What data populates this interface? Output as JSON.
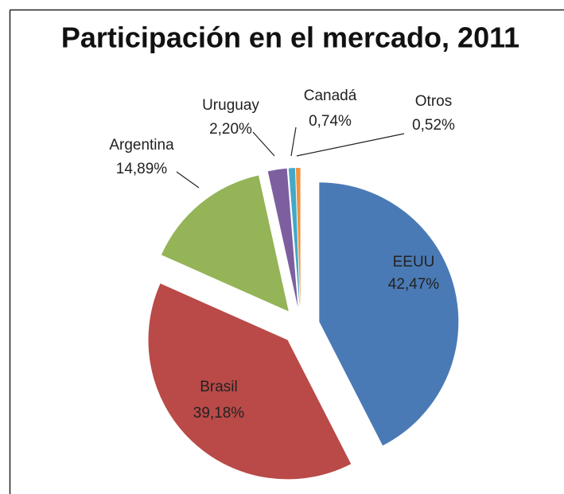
{
  "chart_data": {
    "type": "pie",
    "title": "Participación en el mercado, 2011",
    "categories": [
      "EEUU",
      "Brasil",
      "Argentina",
      "Uruguay",
      "Canadá",
      "Otros"
    ],
    "values": [
      42.47,
      39.18,
      14.89,
      2.2,
      0.74,
      0.52
    ],
    "value_labels": [
      "42,47%",
      "39,18%",
      "14,89%",
      "2,20%",
      "0,74%",
      "0,52%"
    ],
    "colors": [
      "#4a7ab5",
      "#b94a48",
      "#94b457",
      "#7d5fa0",
      "#43a8c7",
      "#f0923e"
    ]
  }
}
